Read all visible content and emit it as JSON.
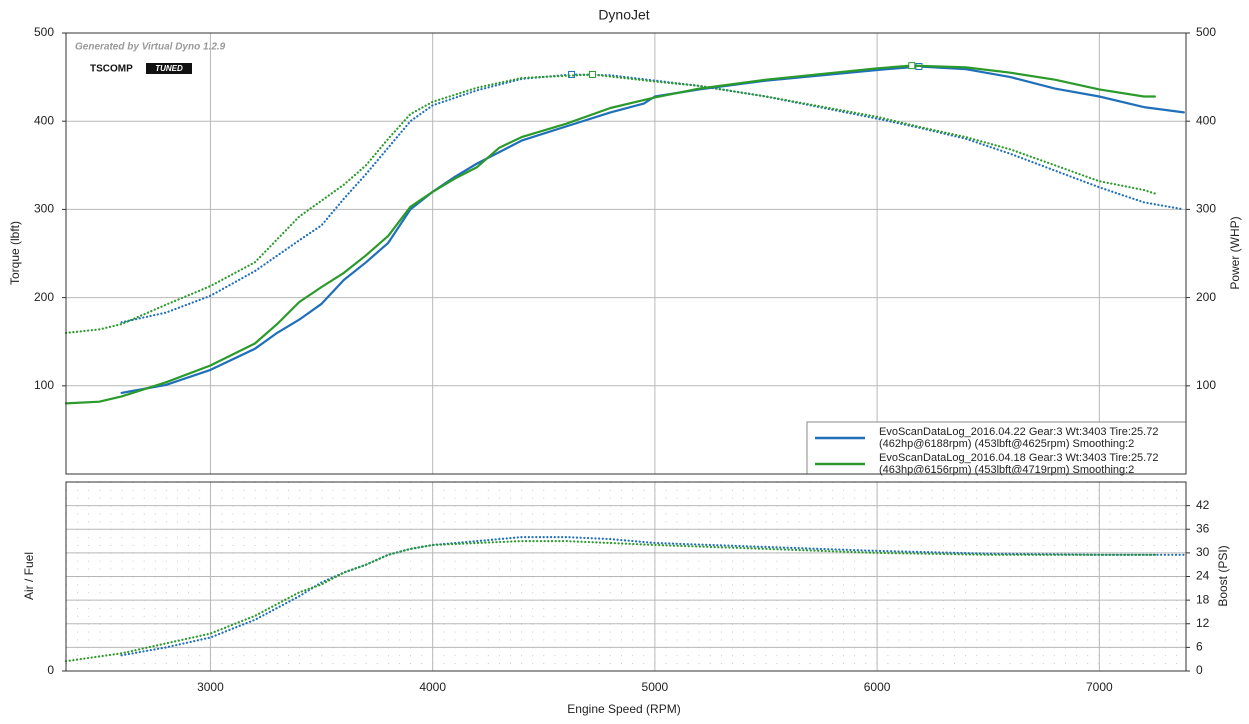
{
  "chart_data": [
    {
      "type": "line",
      "title": "DynoJet",
      "ylabel": "Torque (lbft)",
      "y2label": "Power (WHP)",
      "annotation": "Generated by Virtual Dyno 1.2.9",
      "logo": [
        "TSCOMP",
        "TUNED"
      ],
      "xlim": [
        2350,
        7390
      ],
      "xticks": [
        3000,
        4000,
        5000,
        6000,
        7000
      ],
      "ylim": [
        0,
        500
      ],
      "yticks": [
        100,
        200,
        300,
        400,
        500
      ],
      "y2lim": [
        0,
        500
      ],
      "y2ticks": [
        100,
        200,
        300,
        400,
        500
      ],
      "grid": true,
      "legend": [
        {
          "color": "#1f6fba",
          "lines": [
            "EvoScanDataLog_2016.04.22 Gear:3 Wt:3403 Tire:25.72",
            "(462hp@6188rpm) (453lbft@4625rpm) Smoothing:2"
          ]
        },
        {
          "color": "#2a9a2a",
          "lines": [
            "EvoScanDataLog_2016.04.18 Gear:3 Wt:3403 Tire:25.72",
            "(463hp@6156rpm) (453lbft@4719rpm) Smoothing:2"
          ]
        }
      ],
      "series": [
        {
          "color": "#1f6fba",
          "style": "dotted",
          "x": [
            2600,
            2800,
            3000,
            3200,
            3400,
            3500,
            3600,
            3700,
            3800,
            3900,
            4000,
            4200,
            4400,
            4625,
            4800,
            5000,
            5200,
            5500,
            6000,
            6200,
            6400,
            6600,
            6800,
            7000,
            7200,
            7380
          ],
          "values": [
            172,
            183,
            202,
            230,
            265,
            282,
            312,
            340,
            370,
            400,
            418,
            435,
            448,
            453,
            452,
            446,
            440,
            428,
            403,
            392,
            380,
            363,
            344,
            325,
            308,
            300
          ]
        },
        {
          "color": "#2a9a2a",
          "style": "dotted",
          "x": [
            2350,
            2500,
            2600,
            2800,
            3000,
            3200,
            3400,
            3500,
            3600,
            3700,
            3800,
            3900,
            4000,
            4200,
            4400,
            4719,
            5000,
            5200,
            5500,
            6000,
            6200,
            6400,
            6600,
            6800,
            7000,
            7200,
            7250
          ],
          "values": [
            160,
            164,
            170,
            192,
            213,
            240,
            292,
            310,
            328,
            350,
            380,
            408,
            422,
            438,
            449,
            453,
            445,
            440,
            428,
            405,
            393,
            382,
            368,
            350,
            332,
            322,
            318
          ]
        },
        {
          "color": "#1f6fba",
          "style": "solid",
          "axis": "y2",
          "x": [
            2600,
            2800,
            3000,
            3200,
            3300,
            3400,
            3500,
            3600,
            3700,
            3800,
            3900,
            4000,
            4100,
            4200,
            4300,
            4400,
            4600,
            4800,
            4950,
            5000,
            5200,
            5500,
            6000,
            6188,
            6400,
            6600,
            6800,
            7000,
            7200,
            7380
          ],
          "values": [
            92,
            101,
            118,
            142,
            160,
            175,
            193,
            220,
            240,
            262,
            300,
            320,
            337,
            352,
            365,
            378,
            394,
            410,
            420,
            428,
            436,
            446,
            458,
            462,
            459,
            450,
            437,
            428,
            416,
            410
          ]
        },
        {
          "color": "#2a9a2a",
          "style": "solid",
          "axis": "y2",
          "x": [
            2350,
            2500,
            2600,
            2800,
            3000,
            3200,
            3300,
            3400,
            3500,
            3600,
            3700,
            3800,
            3900,
            4000,
            4100,
            4200,
            4300,
            4400,
            4600,
            4800,
            5000,
            5200,
            5500,
            6000,
            6156,
            6400,
            6600,
            6800,
            7000,
            7200,
            7250
          ],
          "values": [
            80,
            82,
            88,
            104,
            123,
            148,
            170,
            195,
            212,
            228,
            248,
            270,
            303,
            320,
            335,
            348,
            370,
            382,
            397,
            415,
            427,
            437,
            447,
            460,
            463,
            461,
            455,
            447,
            436,
            428,
            428
          ]
        }
      ]
    },
    {
      "type": "line",
      "ylabel": "Air / Fuel",
      "y2label": "Boost (PSI)",
      "xlabel": "Engine Speed (RPM)",
      "xlim": [
        2350,
        7390
      ],
      "xticks": [
        3000,
        4000,
        5000,
        6000,
        7000
      ],
      "ylim": [
        0,
        48
      ],
      "yticks": [
        0
      ],
      "y2lim": [
        0,
        48
      ],
      "y2ticks": [
        0,
        6,
        12,
        18,
        24,
        30,
        36,
        42
      ],
      "grid": true,
      "series": [
        {
          "color": "#1f6fba",
          "style": "dotted",
          "axis": "y2",
          "x": [
            2600,
            2800,
            3000,
            3200,
            3400,
            3500,
            3600,
            3700,
            3800,
            3900,
            4000,
            4200,
            4400,
            4600,
            4800,
            5000,
            5500,
            6000,
            6500,
            7000,
            7380
          ],
          "values": [
            4,
            6,
            8.5,
            13,
            19,
            22.5,
            25,
            27,
            29.5,
            31,
            32,
            33,
            34,
            34,
            33.5,
            32.5,
            31.5,
            30.5,
            29.8,
            29.5,
            29.5
          ]
        },
        {
          "color": "#2a9a2a",
          "style": "dotted",
          "axis": "y2",
          "x": [
            2350,
            2600,
            2800,
            3000,
            3200,
            3400,
            3500,
            3600,
            3700,
            3800,
            3900,
            4000,
            4200,
            4400,
            4600,
            4800,
            5000,
            5500,
            6000,
            6500,
            7000,
            7250
          ],
          "values": [
            2.5,
            4.5,
            7,
            9.5,
            14,
            20,
            22,
            25,
            27,
            29.5,
            31,
            32,
            32.5,
            33,
            33,
            32.5,
            32,
            31,
            30,
            29.5,
            29.5,
            29.5
          ]
        }
      ]
    }
  ]
}
